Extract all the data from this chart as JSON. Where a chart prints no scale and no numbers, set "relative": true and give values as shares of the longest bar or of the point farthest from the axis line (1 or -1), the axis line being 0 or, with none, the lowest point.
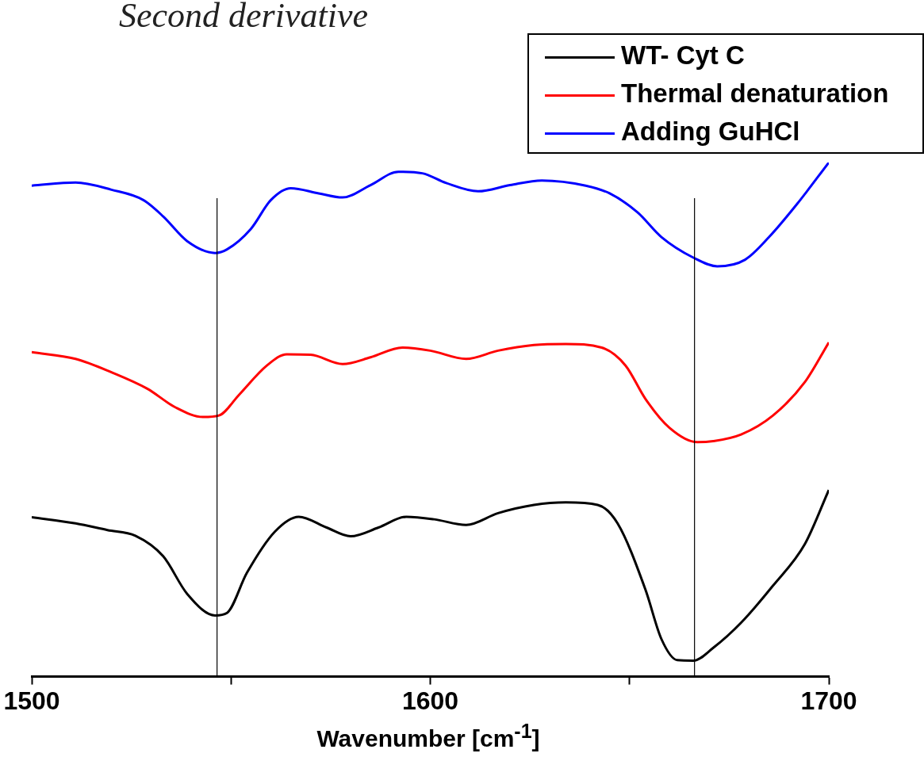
{
  "chart_data": {
    "type": "line",
    "title": "Second derivative",
    "xlabel": "Wavenumber [cm$^{-1}$]",
    "relative": true,
    "xlim": [
      1500,
      1700
    ],
    "xticks": [
      1500,
      {
        "value": 1550,
        "label": null
      },
      1600,
      {
        "value": 1650,
        "label": null
      },
      1700
    ],
    "grid": false,
    "legend": "top right",
    "marker": "none",
    "line_style": "solid",
    "ref_lines": [
      {
        "axis": "x",
        "value": 1546.5,
        "color": "#000000"
      },
      {
        "axis": "x",
        "value": 1666.3,
        "color": "#000000"
      }
    ],
    "series": [
      {
        "name": "WT- Cyt C",
        "color": "#000000",
        "x": [
          1500,
          1511,
          1519,
          1526,
          1533,
          1539,
          1546,
          1549,
          1554,
          1561,
          1567,
          1574,
          1580,
          1587,
          1594,
          1601,
          1609,
          1617,
          1626,
          1634,
          1642,
          1647,
          1654,
          1658,
          1662,
          1666,
          1671,
          1678,
          1686,
          1694,
          1700
        ],
        "values": [
          0.31,
          0.298,
          0.285,
          0.274,
          0.234,
          0.161,
          0.119,
          0.124,
          0.202,
          0.282,
          0.311,
          0.29,
          0.273,
          0.29,
          0.311,
          0.306,
          0.295,
          0.318,
          0.334,
          0.339,
          0.334,
          0.298,
          0.169,
          0.073,
          0.032,
          0.031,
          0.056,
          0.105,
          0.177,
          0.258,
          0.363
        ]
      },
      {
        "name": "Thermal denaturation",
        "color": "#ff0000",
        "x": [
          1500,
          1511,
          1520,
          1529,
          1536,
          1543,
          1547,
          1552,
          1559,
          1564,
          1570,
          1578,
          1585,
          1593,
          1600,
          1609,
          1617,
          1626,
          1634,
          1643,
          1649,
          1654,
          1660,
          1667,
          1671,
          1678,
          1686,
          1694,
          1700
        ],
        "values": [
          0.631,
          0.618,
          0.592,
          0.56,
          0.524,
          0.505,
          0.508,
          0.548,
          0.605,
          0.627,
          0.626,
          0.608,
          0.621,
          0.64,
          0.634,
          0.618,
          0.634,
          0.645,
          0.647,
          0.64,
          0.605,
          0.54,
          0.484,
          0.456,
          0.458,
          0.471,
          0.508,
          0.573,
          0.65
        ]
      },
      {
        "name": "Adding GuHCl",
        "color": "#0000ff",
        "x": [
          1500,
          1511,
          1520,
          1528,
          1533,
          1539,
          1546,
          1549,
          1555,
          1560,
          1565,
          1572,
          1578,
          1585,
          1592,
          1598,
          1604,
          1612,
          1620,
          1628,
          1639,
          1645,
          1652,
          1658,
          1666,
          1672,
          1679,
          1685,
          1692,
          1700
        ],
        "values": [
          0.955,
          0.961,
          0.947,
          0.927,
          0.895,
          0.847,
          0.824,
          0.831,
          0.871,
          0.927,
          0.95,
          0.94,
          0.932,
          0.956,
          0.982,
          0.979,
          0.96,
          0.944,
          0.956,
          0.965,
          0.955,
          0.94,
          0.903,
          0.855,
          0.815,
          0.798,
          0.811,
          0.855,
          0.919,
          1
        ]
      }
    ]
  }
}
